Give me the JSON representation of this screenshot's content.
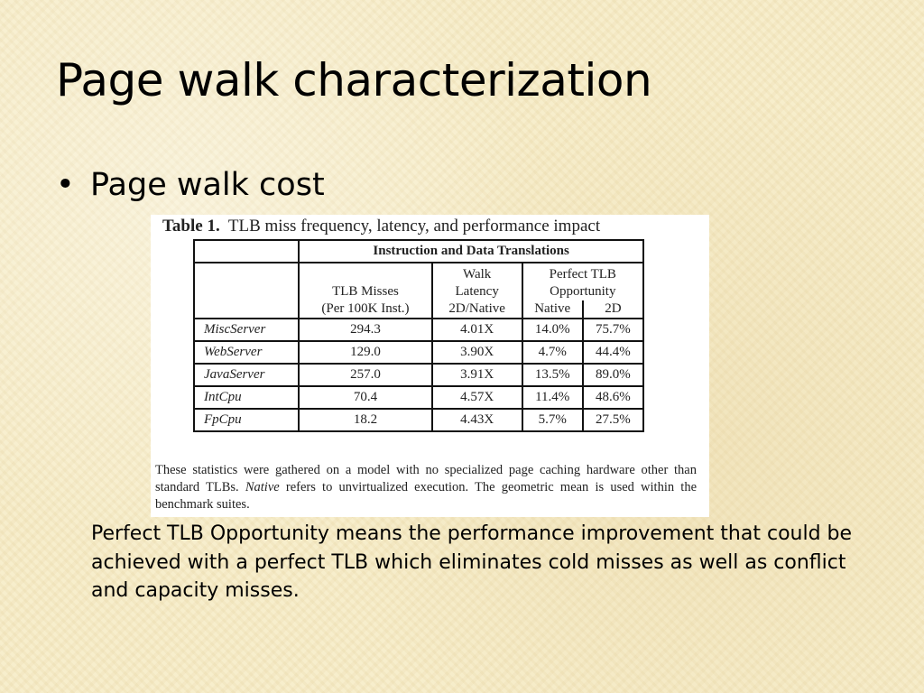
{
  "slide": {
    "title": "Page walk characterization",
    "bullet": {
      "marker": "•",
      "text": "Page walk cost"
    },
    "body_text": "Perfect TLB Opportunity means the performance improvement that could be achieved with a perfect TLB which eliminates cold misses as well as conflict and capacity misses."
  },
  "figure": {
    "caption_label": "Table 1.",
    "caption_text": "TLB miss frequency, latency, and performance impact",
    "group_header": "Instruction and Data Translations",
    "col_tlb_misses": "TLB Misses",
    "col_tlb_misses_unit": "(Per 100K Inst.)",
    "col_walk_1": "Walk",
    "col_walk_2": "Latency",
    "col_walk_3": "2D/Native",
    "col_perfect_1": "Perfect TLB",
    "col_perfect_2": "Opportunity",
    "col_native": "Native",
    "col_2d": "2D",
    "rows": [
      {
        "benchmark": "MiscServer",
        "tlb_misses": "294.3",
        "walk_latency": "4.01X",
        "native": "14.0%",
        "twod": "75.7%"
      },
      {
        "benchmark": "WebServer",
        "tlb_misses": "129.0",
        "walk_latency": "3.90X",
        "native": "4.7%",
        "twod": "44.4%"
      },
      {
        "benchmark": "JavaServer",
        "tlb_misses": "257.0",
        "walk_latency": "3.91X",
        "native": "13.5%",
        "twod": "89.0%"
      },
      {
        "benchmark": "IntCpu",
        "tlb_misses": "70.4",
        "walk_latency": "4.57X",
        "native": "11.4%",
        "twod": "48.6%"
      },
      {
        "benchmark": "FpCpu",
        "tlb_misses": "18.2",
        "walk_latency": "4.43X",
        "native": "5.7%",
        "twod": "27.5%"
      }
    ],
    "notes_before_em": "These statistics were gathered on a model with no specialized page caching hardware other than standard TLBs. ",
    "notes_em": "Native",
    "notes_after_em": " refers to unvirtualized execution. The geometric mean is used within the benchmark suites."
  },
  "colors": {
    "background": "#f7ecc6",
    "figure_background": "#ffffff",
    "text": "#000000"
  }
}
